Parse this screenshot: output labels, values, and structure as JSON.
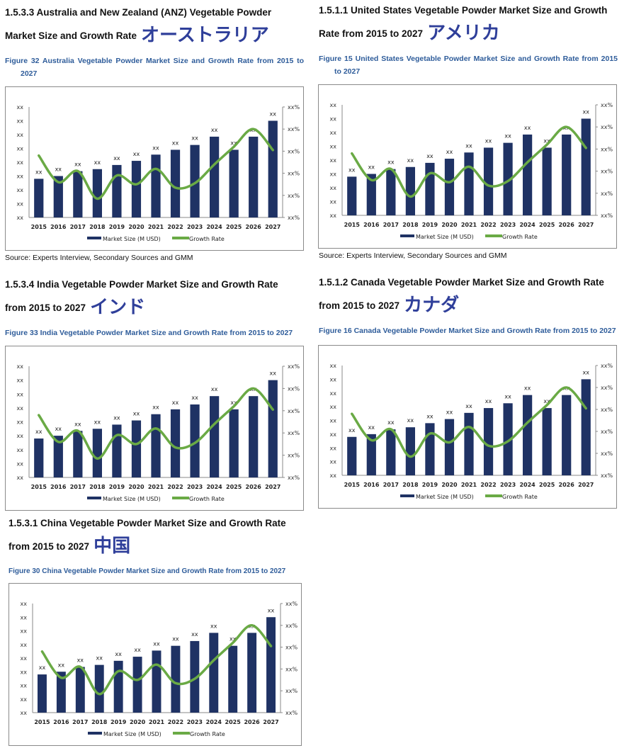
{
  "panels": [
    {
      "heading_line1": "1.5.3.3 Australia and New Zealand (ANZ) Vegetable Powder",
      "heading_line2": "Market Size and Growth Rate",
      "country_jp": "オーストラリア",
      "caption_line1": "Figure 32 Australia Vegetable Powder Market Size and Growth Rate from 2015 to",
      "caption_line2": "2027",
      "source": "Source: Experts Interview, Secondary Sources and GMM"
    },
    {
      "heading_line1": "1.5.1.1 United States Vegetable Powder Market Size and Growth",
      "heading_line2": "Rate from 2015 to 2027",
      "country_jp": "アメリカ",
      "caption_line1": "Figure 15 United States Vegetable Powder Market Size and Growth Rate from 2015",
      "caption_line2": "to 2027",
      "source": "Source: Experts Interview, Secondary Sources and GMM"
    },
    {
      "heading_line1": "1.5.3.4 India Vegetable Powder Market Size and Growth Rate",
      "heading_line2": "from 2015 to 2027",
      "country_jp": "インド",
      "caption_line1": "Figure 33 India Vegetable Powder Market Size and Growth Rate from 2015 to 2027",
      "caption_line2": "",
      "source": ""
    },
    {
      "heading_line1": "1.5.1.2 Canada Vegetable Powder Market Size and Growth Rate",
      "heading_line2": "from 2015 to 2027",
      "country_jp": "カナダ",
      "caption_line1": "Figure 16 Canada Vegetable Powder Market Size and Growth Rate from 2015 to 2027",
      "caption_line2": "",
      "source": ""
    },
    {
      "heading_line1": "1.5.3.1 China Vegetable Powder Market Size and Growth Rate",
      "heading_line2": "from 2015 to 2027",
      "country_jp": "中国",
      "caption_line1": "Figure 30 China Vegetable Powder Market Size and Growth Rate from 2015 to 2027",
      "caption_line2": "",
      "source": ""
    }
  ],
  "colors": {
    "bar": "#1f3264",
    "line": "#6aaa45",
    "caption": "#2e5c9a",
    "japanese_label": "#2f3f9a"
  },
  "chart_data": [
    {
      "type": "bar+line",
      "categories": [
        "2015",
        "2016",
        "2017",
        "2018",
        "2019",
        "2020",
        "2021",
        "2022",
        "2023",
        "2024",
        "2025",
        "2026",
        "2027"
      ],
      "series": [
        {
          "name": "Market Size (M USD)",
          "type": "bar",
          "axis": "left",
          "values": [
            2.8,
            3.0,
            3.35,
            3.5,
            3.8,
            4.1,
            4.55,
            4.9,
            5.25,
            5.85,
            4.9,
            5.85,
            7.0
          ],
          "data_labels": [
            "xx",
            "xx",
            "xx",
            "xx",
            "xx",
            "xx",
            "xx",
            "xx",
            "xx",
            "xx",
            "xx",
            "xx",
            "xx"
          ]
        },
        {
          "name": "Growth Rate",
          "type": "line",
          "axis": "right",
          "values": [
            2.8,
            1.6,
            2.1,
            0.85,
            1.9,
            1.5,
            2.2,
            1.35,
            1.55,
            2.4,
            3.2,
            4.0,
            3.05
          ]
        }
      ],
      "left_ticks": [
        "xx",
        "xx",
        "xx",
        "xx",
        "xx",
        "xx",
        "xx",
        "xx",
        "xx"
      ],
      "right_ticks": [
        "xx%",
        "xx%",
        "xx%",
        "xx%",
        "xx%",
        "xx%"
      ],
      "ylim_left": [
        0,
        8
      ],
      "ylim_right": [
        0,
        5
      ],
      "legend": "bottom",
      "grid": false
    },
    {
      "type": "bar+line",
      "categories": [
        "2015",
        "2016",
        "2017",
        "2018",
        "2019",
        "2020",
        "2021",
        "2022",
        "2023",
        "2024",
        "2025",
        "2026",
        "2027"
      ],
      "series": [
        {
          "name": "Market Size (M USD)",
          "type": "bar",
          "axis": "left",
          "values": [
            2.8,
            3.0,
            3.35,
            3.5,
            3.8,
            4.1,
            4.55,
            4.9,
            5.25,
            5.85,
            4.9,
            5.85,
            7.0
          ],
          "data_labels": [
            "xx",
            "xx",
            "xx",
            "xx",
            "xx",
            "xx",
            "xx",
            "xx",
            "xx",
            "xx",
            "xx",
            "xx",
            "xx"
          ]
        },
        {
          "name": "Growth Rate",
          "type": "line",
          "axis": "right",
          "values": [
            2.8,
            1.6,
            2.1,
            0.85,
            1.9,
            1.5,
            2.2,
            1.35,
            1.55,
            2.4,
            3.2,
            4.0,
            3.05
          ]
        }
      ],
      "left_ticks": [
        "xx",
        "xx",
        "xx",
        "xx",
        "xx",
        "xx",
        "xx",
        "xx",
        "xx"
      ],
      "right_ticks": [
        "xx%",
        "xx%",
        "xx%",
        "xx%",
        "xx%",
        "xx%"
      ],
      "ylim_left": [
        0,
        8
      ],
      "ylim_right": [
        0,
        5
      ],
      "legend": "bottom",
      "grid": false
    },
    {
      "type": "bar+line",
      "categories": [
        "2015",
        "2016",
        "2017",
        "2018",
        "2019",
        "2020",
        "2021",
        "2022",
        "2023",
        "2024",
        "2025",
        "2026",
        "2027"
      ],
      "series": [
        {
          "name": "Market Size (M USD)",
          "type": "bar",
          "axis": "left",
          "values": [
            2.8,
            3.0,
            3.35,
            3.5,
            3.8,
            4.1,
            4.55,
            4.9,
            5.25,
            5.85,
            4.9,
            5.85,
            7.0
          ],
          "data_labels": [
            "xx",
            "xx",
            "xx",
            "xx",
            "xx",
            "xx",
            "xx",
            "xx",
            "xx",
            "xx",
            "xx",
            "xx",
            "xx"
          ]
        },
        {
          "name": "Growth Rate",
          "type": "line",
          "axis": "right",
          "values": [
            2.8,
            1.6,
            2.1,
            0.85,
            1.9,
            1.5,
            2.2,
            1.35,
            1.55,
            2.4,
            3.2,
            4.0,
            3.05
          ]
        }
      ],
      "left_ticks": [
        "xx",
        "xx",
        "xx",
        "xx",
        "xx",
        "xx",
        "xx",
        "xx",
        "xx"
      ],
      "right_ticks": [
        "xx%",
        "xx%",
        "xx%",
        "xx%",
        "xx%",
        "xx%"
      ],
      "ylim_left": [
        0,
        8
      ],
      "ylim_right": [
        0,
        5
      ],
      "legend": "bottom",
      "grid": false
    },
    {
      "type": "bar+line",
      "categories": [
        "2015",
        "2016",
        "2017",
        "2018",
        "2019",
        "2020",
        "2021",
        "2022",
        "2023",
        "2024",
        "2025",
        "2026",
        "2027"
      ],
      "series": [
        {
          "name": "Market Size (M USD)",
          "type": "bar",
          "axis": "left",
          "values": [
            2.8,
            3.0,
            3.35,
            3.5,
            3.8,
            4.1,
            4.55,
            4.9,
            5.25,
            5.85,
            4.9,
            5.85,
            7.0
          ],
          "data_labels": [
            "xx",
            "xx",
            "xx",
            "xx",
            "xx",
            "xx",
            "xx",
            "xx",
            "xx",
            "xx",
            "xx",
            "xx",
            "xx"
          ]
        },
        {
          "name": "Growth Rate",
          "type": "line",
          "axis": "right",
          "values": [
            2.8,
            1.6,
            2.1,
            0.85,
            1.9,
            1.5,
            2.2,
            1.35,
            1.55,
            2.4,
            3.2,
            4.0,
            3.05
          ]
        }
      ],
      "left_ticks": [
        "xx",
        "xx",
        "xx",
        "xx",
        "xx",
        "xx",
        "xx",
        "xx",
        "xx"
      ],
      "right_ticks": [
        "xx%",
        "xx%",
        "xx%",
        "xx%",
        "xx%",
        "xx%"
      ],
      "ylim_left": [
        0,
        8
      ],
      "ylim_right": [
        0,
        5
      ],
      "legend": "bottom",
      "grid": false
    },
    {
      "type": "bar+line",
      "categories": [
        "2015",
        "2016",
        "2017",
        "2018",
        "2019",
        "2020",
        "2021",
        "2022",
        "2023",
        "2024",
        "2025",
        "2026",
        "2027"
      ],
      "series": [
        {
          "name": "Market Size (M USD)",
          "type": "bar",
          "axis": "left",
          "values": [
            2.8,
            3.0,
            3.35,
            3.5,
            3.8,
            4.1,
            4.55,
            4.9,
            5.25,
            5.85,
            4.9,
            5.85,
            7.0
          ],
          "data_labels": [
            "xx",
            "xx",
            "xx",
            "xx",
            "xx",
            "xx",
            "xx",
            "xx",
            "xx",
            "xx",
            "xx",
            "xx",
            "xx"
          ]
        },
        {
          "name": "Growth Rate",
          "type": "line",
          "axis": "right",
          "values": [
            2.8,
            1.6,
            2.1,
            0.85,
            1.9,
            1.5,
            2.2,
            1.35,
            1.55,
            2.4,
            3.2,
            4.0,
            3.05
          ]
        }
      ],
      "left_ticks": [
        "xx",
        "xx",
        "xx",
        "xx",
        "xx",
        "xx",
        "xx",
        "xx",
        "xx"
      ],
      "right_ticks": [
        "xx%",
        "xx%",
        "xx%",
        "xx%",
        "xx%",
        "xx%"
      ],
      "ylim_left": [
        0,
        8
      ],
      "ylim_right": [
        0,
        5
      ],
      "legend": "bottom",
      "grid": false
    }
  ]
}
